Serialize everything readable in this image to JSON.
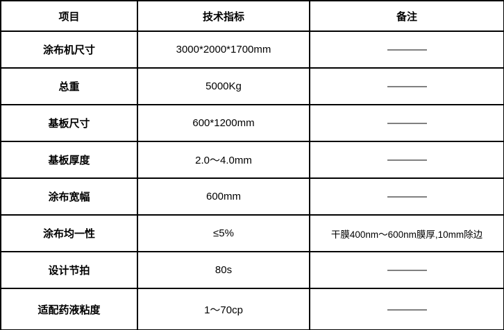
{
  "table": {
    "headers": [
      {
        "label": "项目"
      },
      {
        "label": "技术指标"
      },
      {
        "label": "备注"
      }
    ],
    "rows": [
      {
        "item": "涂布机尺寸",
        "spec": "3000*2000*1700mm",
        "remark": "————",
        "remark_is_dash": true
      },
      {
        "item": "总重",
        "spec": "5000Kg",
        "remark": "————",
        "remark_is_dash": true
      },
      {
        "item": "基板尺寸",
        "spec": "600*1200mm",
        "remark": "————",
        "remark_is_dash": true
      },
      {
        "item": "基板厚度",
        "spec": "2.0～4.0mm",
        "remark": "————",
        "remark_is_dash": true
      },
      {
        "item": "涂布宽幅",
        "spec": "600mm",
        "remark": "————",
        "remark_is_dash": true
      },
      {
        "item": "涂布均一性",
        "spec": "≤5%",
        "remark": "干膜400nm～600nm膜厚,10mm除边",
        "remark_is_dash": false
      },
      {
        "item": "设计节拍",
        "spec": "80s",
        "remark": "————",
        "remark_is_dash": true
      },
      {
        "item": "适配药液粘度",
        "spec": "1～70cp",
        "remark": "————",
        "remark_is_dash": true
      }
    ],
    "colors": {
      "border": "#000000",
      "text": "#000000",
      "background": "#ffffff"
    }
  }
}
